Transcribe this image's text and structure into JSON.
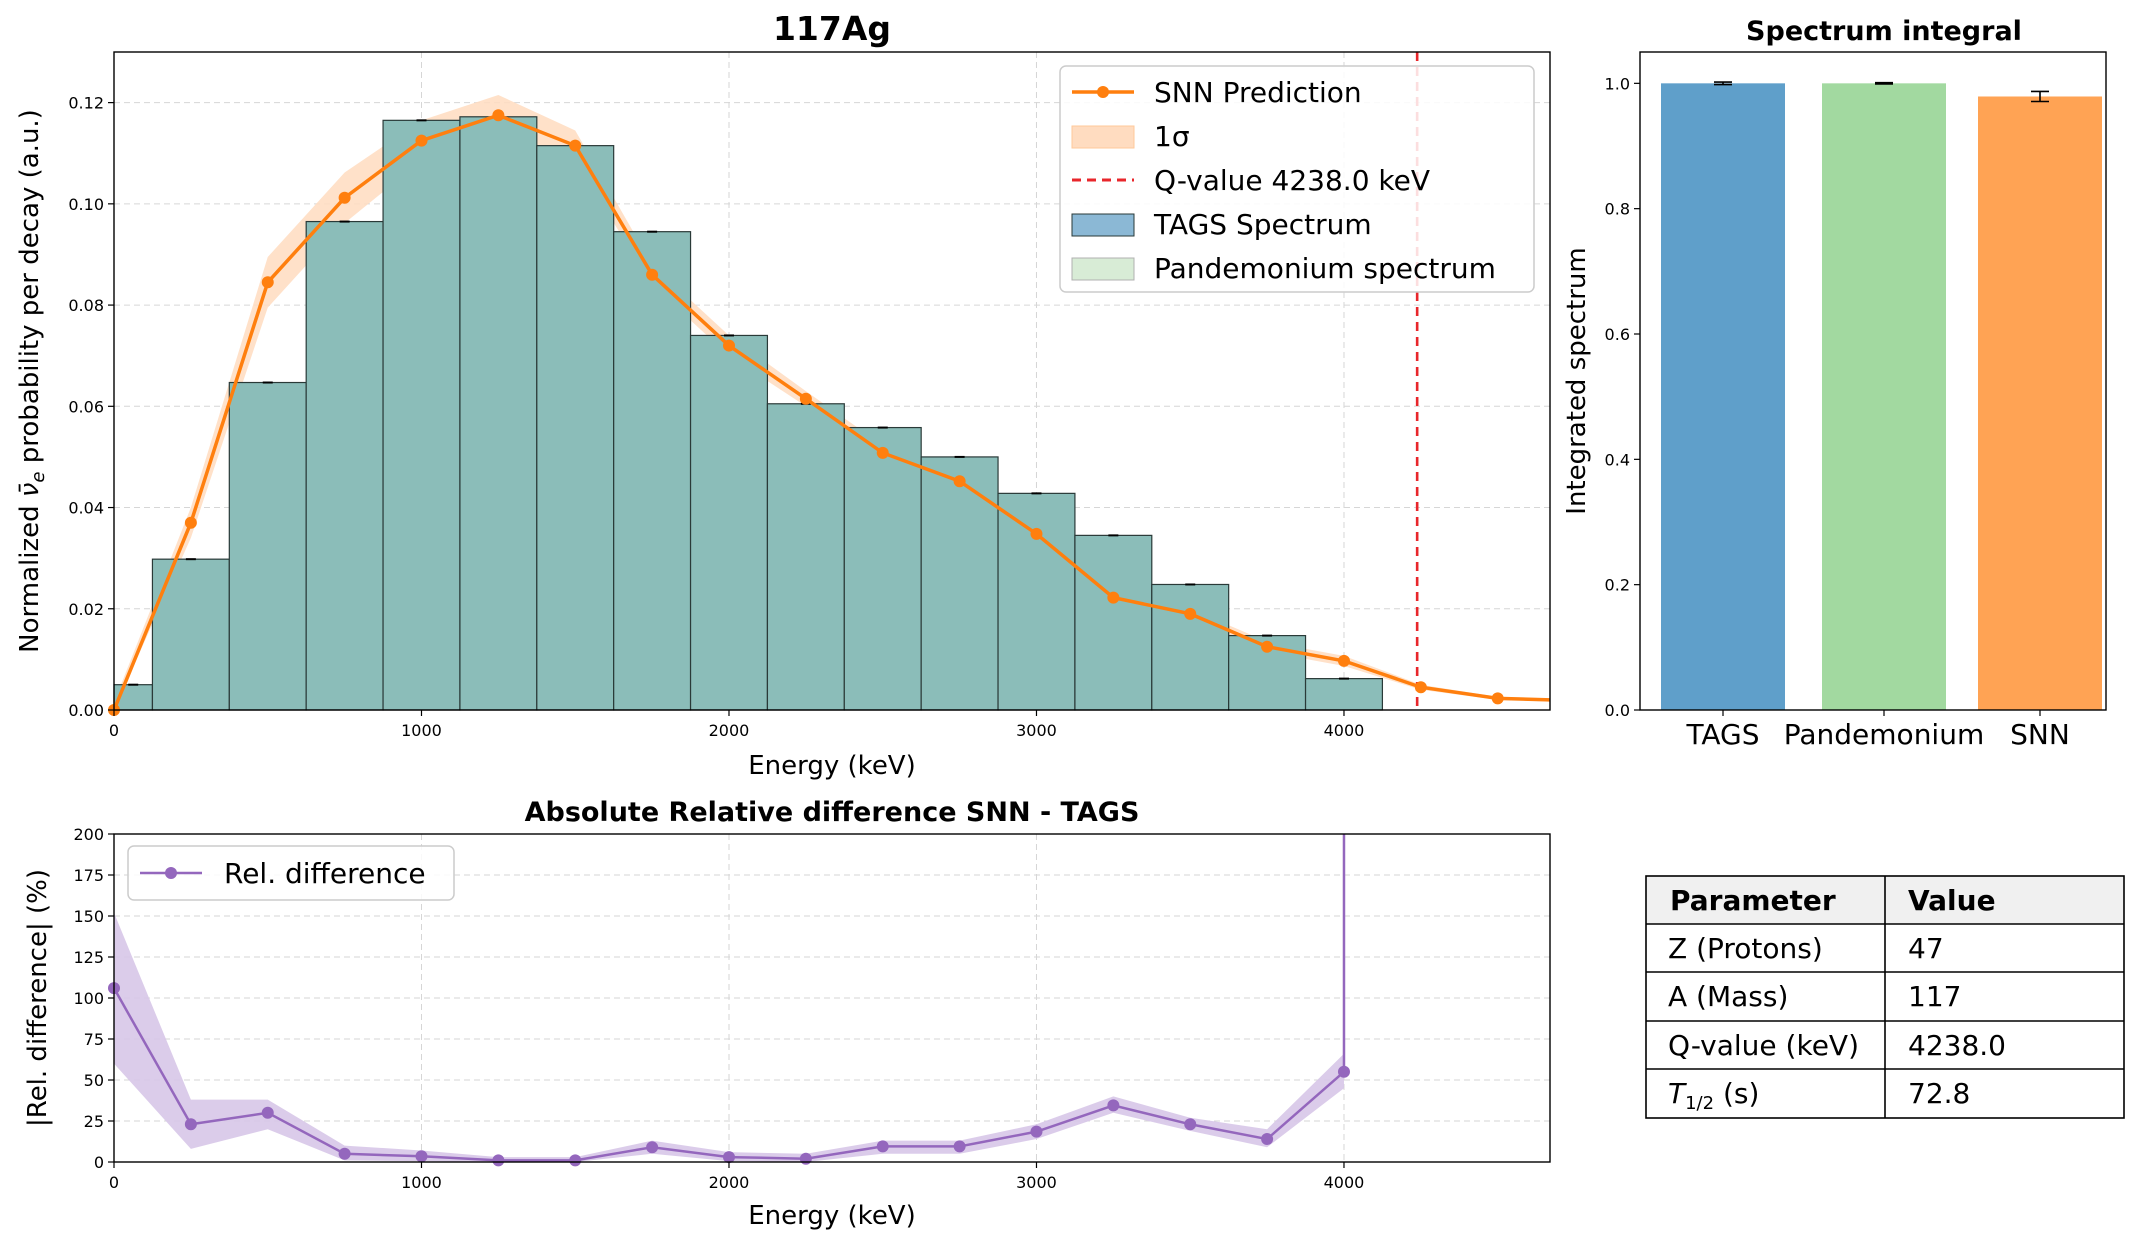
{
  "chart_data": [
    {
      "type": "bar+line",
      "title": "117Ag",
      "xlabel": "Energy (keV)",
      "ylabel_parts": [
        "Normalized ",
        "ν̄",
        "e",
        " probability per decay (a.u.)"
      ],
      "xlim": [
        0,
        4670
      ],
      "ylim": [
        0,
        0.13
      ],
      "xticks": [
        0,
        1000,
        2000,
        3000,
        4000
      ],
      "yticks": [
        0.0,
        0.02,
        0.04,
        0.06,
        0.08,
        0.1,
        0.12
      ],
      "ytick_labels": [
        "0.00",
        "0.02",
        "0.04",
        "0.06",
        "0.08",
        "0.10",
        "0.12"
      ],
      "grid": true,
      "legend_position": "top-right",
      "legend": [
        "SNN Prediction",
        "1σ",
        "Q-value 4238.0 keV",
        "TAGS Spectrum",
        "Pandemonium spectrum"
      ],
      "bin_edges": [
        0,
        125,
        375,
        625,
        875,
        1125,
        1375,
        1625,
        1875,
        2125,
        2375,
        2625,
        2875,
        3125,
        3375,
        3625,
        3875,
        4125
      ],
      "tags_values": [
        0.005,
        0.0298,
        0.0647,
        0.0965,
        0.1165,
        0.1172,
        0.1115,
        0.0945,
        0.074,
        0.0605,
        0.0558,
        0.05,
        0.0428,
        0.0345,
        0.0248,
        0.0147,
        0.0062
      ],
      "snn_x": [
        0,
        250,
        500,
        750,
        1000,
        1250,
        1500,
        1750,
        2000,
        2250,
        2500,
        2750,
        3000,
        3250,
        3500,
        3750,
        4000,
        4250,
        4500,
        4670
      ],
      "snn_y": [
        0.0,
        0.037,
        0.0845,
        0.1012,
        0.1125,
        0.1175,
        0.1115,
        0.086,
        0.072,
        0.0615,
        0.0508,
        0.0452,
        0.0348,
        0.0222,
        0.019,
        0.0125,
        0.0097,
        0.0045,
        0.0023,
        0.002
      ],
      "snn_sigma": [
        0.0015,
        0.003,
        0.005,
        0.005,
        0.004,
        0.004,
        0.003,
        0.002,
        0.002,
        0.0015,
        0.0015,
        0.0015,
        0.0015,
        0.0012,
        0.001,
        0.001,
        0.001,
        0.0005,
        0.0003,
        0.0003
      ],
      "q_value": 4238.0
    },
    {
      "type": "bar",
      "title": "Spectrum integral",
      "ylabel": "Integrated spectrum",
      "categories": [
        "TAGS",
        "Pandemonium",
        "SNN"
      ],
      "values": [
        1.0,
        1.0,
        0.979
      ],
      "errors": [
        0.002,
        0.001,
        0.008
      ],
      "colors": [
        "#5f9fca",
        "#a2d9a0",
        "#ffa354"
      ],
      "ylim": [
        0,
        1.05
      ],
      "yticks": [
        0.0,
        0.2,
        0.4,
        0.6,
        0.8,
        1.0
      ],
      "ytick_labels": [
        "0.0",
        "0.2",
        "0.4",
        "0.6",
        "0.8",
        "1.0"
      ],
      "grid": false
    },
    {
      "type": "line",
      "title": "Absolute Relative difference SNN - TAGS",
      "xlabel": "Energy (keV)",
      "ylabel": "|Rel. difference| (%)",
      "xlim": [
        0,
        4670
      ],
      "ylim": [
        0,
        200
      ],
      "xticks": [
        0,
        1000,
        2000,
        3000,
        4000
      ],
      "yticks": [
        0,
        25,
        50,
        75,
        100,
        125,
        150,
        175,
        200
      ],
      "grid": true,
      "legend_position": "top-left",
      "legend": [
        "Rel. difference"
      ],
      "x": [
        0,
        250,
        500,
        750,
        1000,
        1250,
        1500,
        1750,
        2000,
        2250,
        2500,
        2750,
        3000,
        3250,
        3500,
        3750,
        4000
      ],
      "y": [
        106,
        23,
        30,
        5,
        3.5,
        1,
        1,
        9,
        3,
        2,
        9.5,
        9.5,
        18.5,
        34.5,
        23,
        14,
        55
      ],
      "band_lo": [
        60,
        8,
        20,
        1,
        0.5,
        0,
        0,
        5,
        0.5,
        0,
        5,
        5,
        14,
        30,
        19,
        9,
        45
      ],
      "band_hi": [
        152,
        38,
        38,
        10,
        7,
        3,
        3,
        13,
        6,
        5,
        13,
        13,
        23,
        40,
        27,
        20,
        66
      ],
      "spike_x": 4000,
      "spike_top": 200
    }
  ],
  "colors": {
    "snn": "#ff7f0e",
    "sigma_band": "#ffdcc0",
    "qvalue": "#e8262b",
    "bars": "#8bbdb9",
    "bar_edge": "#2a3a38",
    "rel_diff": "#9467bd",
    "rel_band": "#d7c6e8",
    "grid": "#d6d6d6"
  },
  "params_table": {
    "headers": [
      "Parameter",
      "Value"
    ],
    "rows": [
      {
        "param": "Z (Protons)",
        "value": "47"
      },
      {
        "param": "A (Mass)",
        "value": "117"
      },
      {
        "param": "Q-value (keV)",
        "value": "4238.0"
      },
      {
        "param_main": "T",
        "param_sub": "1/2",
        "param_tail": " (s)",
        "value": "72.8"
      }
    ]
  }
}
